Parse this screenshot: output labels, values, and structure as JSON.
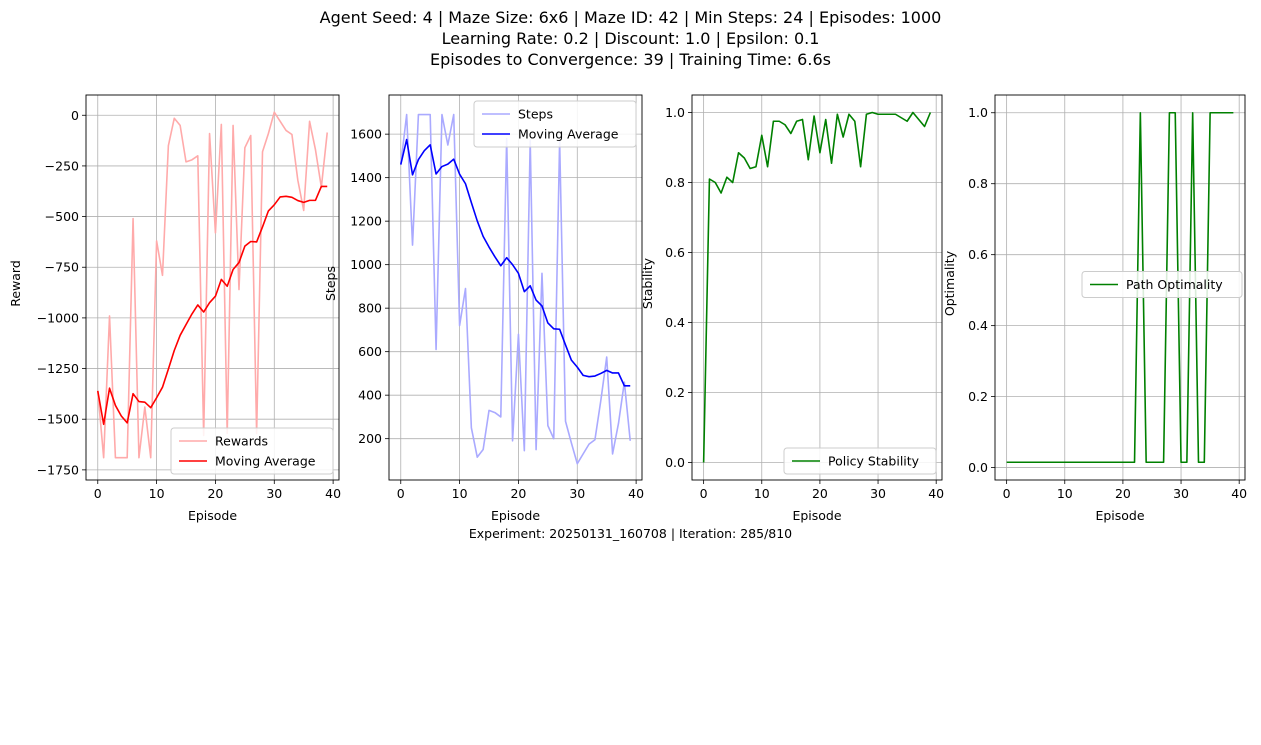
{
  "title_lines": [
    "Agent Seed: 4 | Maze Size: 6x6 | Maze ID: 42 | Min Steps: 24 | Episodes: 1000",
    "Learning Rate: 0.2 | Discount: 1.0 | Epsilon: 0.1",
    "Episodes to Convergence: 39 | Training Time: 6.6s"
  ],
  "footer": "Experiment: 20250131_160708 | Iteration: 285/810",
  "colors": {
    "rewards": "#ffaaaa",
    "reward_avg": "#ff0000",
    "steps": "#aaaaff",
    "steps_avg": "#0000ff",
    "green": "#008000",
    "grid": "#b0b0b0"
  },
  "chart_data": [
    {
      "type": "line",
      "xlabel": "Episode",
      "ylabel": "Reward",
      "xlim": [
        -2,
        41
      ],
      "ylim": [
        -1800,
        100
      ],
      "xticks": [
        0,
        10,
        20,
        30,
        40
      ],
      "yticks": [
        0,
        -250,
        -500,
        -750,
        -1000,
        -1250,
        -1500,
        -1750
      ],
      "grid": true,
      "legend": "lower right",
      "series": [
        {
          "name": "Rewards",
          "color": "#ffaaaa",
          "values": [
            -1360,
            -1690,
            -990,
            -1690,
            -1690,
            -1690,
            -510,
            -1690,
            -1440,
            -1690,
            -620,
            -790,
            -150,
            -15,
            -50,
            -230,
            -220,
            -200,
            -1580,
            -90,
            -580,
            -45,
            -1570,
            -50,
            -860,
            -160,
            -100,
            -1570,
            -180,
            -90,
            15,
            -30,
            -75,
            -95,
            -320,
            -470,
            -30,
            -170,
            -355,
            -85
          ]
        },
        {
          "name": "Moving Average",
          "color": "#ff0000",
          "values": [
            -1360,
            -1525,
            -1347,
            -1432,
            -1484,
            -1518,
            -1374,
            -1413,
            -1416,
            -1443,
            -1394,
            -1342,
            -1253,
            -1161,
            -1086,
            -1033,
            -981,
            -936,
            -971,
            -925,
            -893,
            -810,
            -844,
            -761,
            -727,
            -646,
            -623,
            -625,
            -551,
            -472,
            -442,
            -403,
            -400,
            -405,
            -421,
            -430,
            -420,
            -420,
            -351,
            -351
          ]
        }
      ]
    },
    {
      "type": "line",
      "xlabel": "Episode",
      "ylabel": "Steps",
      "xlim": [
        -2,
        41
      ],
      "ylim": [
        10,
        1780
      ],
      "xticks": [
        0,
        10,
        20,
        30,
        40
      ],
      "yticks": [
        200,
        400,
        600,
        800,
        1000,
        1200,
        1400,
        1600
      ],
      "grid": true,
      "legend": "upper right",
      "series": [
        {
          "name": "Steps",
          "color": "#aaaaff",
          "values": [
            1460,
            1690,
            1090,
            1690,
            1690,
            1690,
            610,
            1690,
            1550,
            1690,
            720,
            890,
            250,
            115,
            150,
            330,
            320,
            300,
            1580,
            190,
            680,
            145,
            1570,
            150,
            960,
            260,
            200,
            1570,
            280,
            180,
            85,
            130,
            175,
            195,
            375,
            575,
            130,
            270,
            460,
            190
          ]
        },
        {
          "name": "Moving Average",
          "color": "#0000ff",
          "values": [
            1460,
            1575,
            1413,
            1483,
            1524,
            1551,
            1417,
            1451,
            1462,
            1485,
            1416,
            1372,
            1285,
            1201,
            1130,
            1081,
            1036,
            995,
            1032,
            1000,
            960,
            876,
            903,
            837,
            810,
            732,
            705,
            703,
            631,
            561,
            529,
            491,
            485,
            488,
            500,
            514,
            502,
            502,
            443,
            443
          ]
        }
      ]
    },
    {
      "type": "line",
      "xlabel": "Episode",
      "ylabel": "Stability",
      "xlim": [
        -2,
        41
      ],
      "ylim": [
        -0.05,
        1.05
      ],
      "xticks": [
        0,
        10,
        20,
        30,
        40
      ],
      "yticks": [
        0.0,
        0.2,
        0.4,
        0.6,
        0.8,
        1.0
      ],
      "grid": true,
      "legend": "lower right",
      "series": [
        {
          "name": "Policy Stability",
          "color": "#008000",
          "values": [
            0.0,
            0.81,
            0.8,
            0.77,
            0.815,
            0.8,
            0.885,
            0.87,
            0.84,
            0.845,
            0.935,
            0.845,
            0.975,
            0.975,
            0.965,
            0.94,
            0.975,
            0.98,
            0.865,
            0.99,
            0.885,
            0.98,
            0.855,
            0.995,
            0.93,
            0.995,
            0.975,
            0.845,
            0.995,
            1.0,
            0.995,
            0.995,
            0.995,
            0.995,
            0.985,
            0.975,
            1.0,
            0.98,
            0.96,
            1.0
          ]
        }
      ]
    },
    {
      "type": "line",
      "xlabel": "Episode",
      "ylabel": "Optimality",
      "xlim": [
        -2,
        41
      ],
      "ylim": [
        -0.035,
        1.05
      ],
      "xticks": [
        0,
        10,
        20,
        30,
        40
      ],
      "yticks": [
        0.0,
        0.2,
        0.4,
        0.6,
        0.8,
        1.0
      ],
      "grid": true,
      "legend": "center right",
      "series": [
        {
          "name": "Path Optimality",
          "color": "#008000",
          "values": [
            0.015,
            0.015,
            0.015,
            0.015,
            0.015,
            0.015,
            0.015,
            0.015,
            0.015,
            0.015,
            0.015,
            0.015,
            0.015,
            0.015,
            0.015,
            0.015,
            0.015,
            0.015,
            0.015,
            0.015,
            0.015,
            0.015,
            0.015,
            1.0,
            0.015,
            0.015,
            0.015,
            0.015,
            1.0,
            1.0,
            0.015,
            0.015,
            1.0,
            0.015,
            0.015,
            1.0,
            1.0,
            1.0,
            1.0,
            1.0
          ]
        }
      ]
    }
  ]
}
